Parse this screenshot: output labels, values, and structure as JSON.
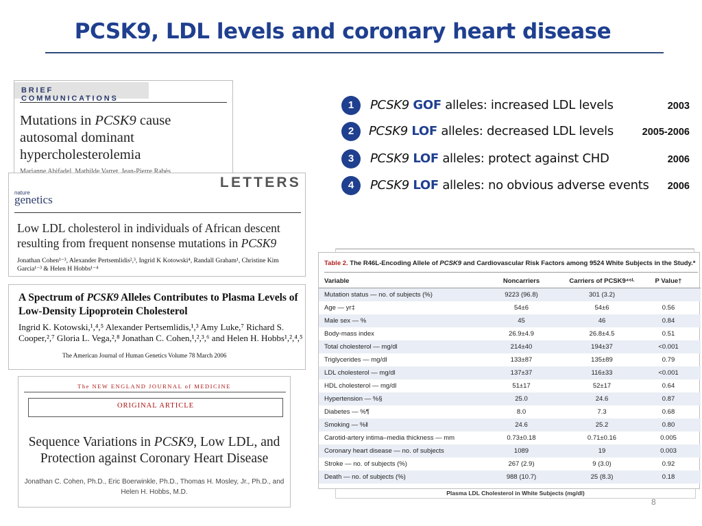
{
  "slide": {
    "title": "PCSK9, LDL levels and coronary heart disease",
    "page_number": "8"
  },
  "cards": {
    "card1": {
      "section": "BRIEF COMMUNICATIONS",
      "title_a": "Mutations in ",
      "title_gene": "PCSK9",
      "title_b": " cause autosomal dominant hypercholesterolemia",
      "authors_clipped": "Marianne Abifadel, Mathilde Varret, Jean-Pierre Rabès"
    },
    "card2": {
      "section": "LETTERS",
      "journal_small": "nature",
      "journal_big": "genetics",
      "title_a": "Low LDL cholesterol in individuals of African descent resulting from frequent nonsense mutations in ",
      "title_gene": "PCSK9",
      "authors": "Jonathan Cohen¹⁻³, Alexander Pertsemlidis²,³, Ingrid K Kotowski⁴, Randall Graham¹, Christine Kim Garcia¹⁻³ & Helen H Hobbs¹⁻⁴"
    },
    "card3": {
      "title_a": "A Spectrum of ",
      "title_gene": "PCSK9",
      "title_b": " Alleles Contributes to Plasma Levels of Low-Density Lipoprotein Cholesterol",
      "authors": "Ingrid K. Kotowski,¹,⁴,⁵ Alexander Pertsemlidis,¹,³ Amy Luke,⁷ Richard S. Cooper,²,⁷ Gloria L. Vega,²,⁸ Jonathan C. Cohen,¹,²,³,⁶ and Helen H. Hobbs¹,²,⁴,⁵",
      "citation": "The American Journal of Human Genetics   Volume 78   March 2006"
    },
    "card4": {
      "journal": "The NEW ENGLAND JOURNAL of MEDICINE",
      "section": "ORIGINAL ARTICLE",
      "title_a": "Sequence Variations in ",
      "title_gene": "PCSK9",
      "title_b": ", Low LDL, and Protection against Coronary Heart Disease",
      "authors": "Jonathan C. Cohen, Ph.D., Eric Boerwinkle, Ph.D., Thomas H. Mosley, Jr., Ph.D., and Helen H. Hobbs, M.D."
    }
  },
  "findings": [
    {
      "num": "1",
      "gene": "PCSK9",
      "kind": "GOF",
      "text": " alleles: increased LDL levels",
      "year": "2003"
    },
    {
      "num": "2",
      "gene": "PCSK9",
      "kind": "LOF",
      "text": " alleles: decreased LDL levels",
      "year": "2005-2006"
    },
    {
      "num": "3",
      "gene": "PCSK9",
      "kind": "LOF",
      "text": " alleles: protect against CHD",
      "year": "2006"
    },
    {
      "num": "4",
      "gene": "PCSK9",
      "kind": "LOF",
      "text": " alleles: no obvious adverse events",
      "year": "2006"
    }
  ],
  "table": {
    "label": "Table 2.",
    "caption_a": " The R46L-Encoding Allele of ",
    "caption_gene": "PCSK9",
    "caption_b": " and Cardiovascular Risk Factors among 9524 White Subjects in the Study.*",
    "headers": {
      "variable": "Variable",
      "noncarriers": "Noncarriers",
      "carriers": "Carriers of PCSK9⁴⁶ᴸ",
      "pvalue": "P Value†"
    },
    "rows": [
      {
        "variable": "Mutation status — no. of subjects (%)",
        "noncarriers": "9223 (96.8)",
        "carriers": "301 (3.2)",
        "p": ""
      },
      {
        "variable": "Age — yr‡",
        "noncarriers": "54±6",
        "carriers": "54±6",
        "p": "0.56"
      },
      {
        "variable": "Male sex — %",
        "noncarriers": "45",
        "carriers": "46",
        "p": "0.84"
      },
      {
        "variable": "Body-mass index",
        "noncarriers": "26.9±4.9",
        "carriers": "26.8±4.5",
        "p": "0.51"
      },
      {
        "variable": "Total cholesterol — mg/dl",
        "noncarriers": "214±40",
        "carriers": "194±37",
        "p": "<0.001"
      },
      {
        "variable": "Triglycerides — mg/dl",
        "noncarriers": "133±87",
        "carriers": "135±89",
        "p": "0.79"
      },
      {
        "variable": "LDL cholesterol — mg/dl",
        "noncarriers": "137±37",
        "carriers": "116±33",
        "p": "<0.001"
      },
      {
        "variable": "HDL cholesterol — mg/dl",
        "noncarriers": "51±17",
        "carriers": "52±17",
        "p": "0.64"
      },
      {
        "variable": "Hypertension — %§",
        "noncarriers": "25.0",
        "carriers": "24.6",
        "p": "0.87"
      },
      {
        "variable": "Diabetes — %¶",
        "noncarriers": "8.0",
        "carriers": "7.3",
        "p": "0.68"
      },
      {
        "variable": "Smoking — %‖",
        "noncarriers": "24.6",
        "carriers": "25.2",
        "p": "0.80"
      },
      {
        "variable": "Carotid-artery intima–media thickness — mm",
        "noncarriers": "0.73±0.18",
        "carriers": "0.71±0.16",
        "p": "0.005"
      },
      {
        "variable": "Coronary heart disease — no. of subjects",
        "noncarriers": "1089",
        "carriers": "19",
        "p": "0.003"
      },
      {
        "variable": "Stroke — no. of subjects (%)",
        "noncarriers": "267 (2.9)",
        "carriers": "9 (3.0)",
        "p": "0.92"
      },
      {
        "variable": "Death — no. of subjects (%)",
        "noncarriers": "988 (10.7)",
        "carriers": "25 (8.3)",
        "p": "0.18"
      }
    ],
    "underlying_caption": "Plasma LDL Cholesterol in White Subjects (mg/dl)"
  }
}
